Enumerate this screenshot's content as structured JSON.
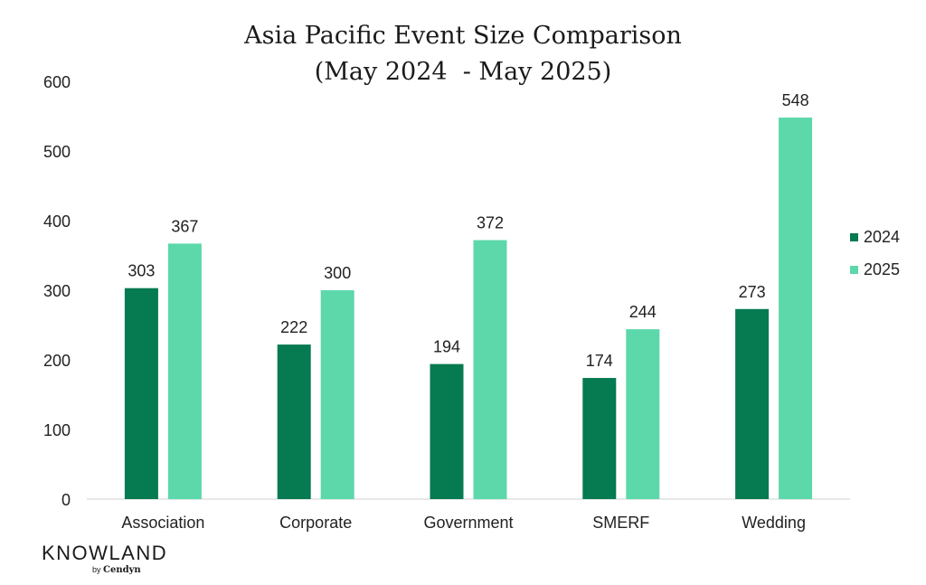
{
  "chart_data": {
    "type": "bar",
    "title_lines": [
      "Asia Pacific Event Size Comparison",
      "(May 2024  - May 2025)"
    ],
    "categories": [
      "Association",
      "Corporate",
      "Government",
      "SMERF",
      "Wedding"
    ],
    "series": [
      {
        "name": "2024",
        "color": "#067a50",
        "values": [
          303,
          222,
          194,
          174,
          273
        ]
      },
      {
        "name": "2025",
        "color": "#5cd8aa",
        "values": [
          367,
          300,
          372,
          244,
          548
        ]
      }
    ],
    "y_ticks": [
      "0",
      "100",
      "200",
      "300",
      "400",
      "500",
      "600"
    ],
    "ylim": [
      0,
      600
    ],
    "grid": false,
    "legend_position": "right"
  },
  "branding": {
    "name": "KNOWLAND",
    "by": "by",
    "parent": "Cendyn"
  }
}
